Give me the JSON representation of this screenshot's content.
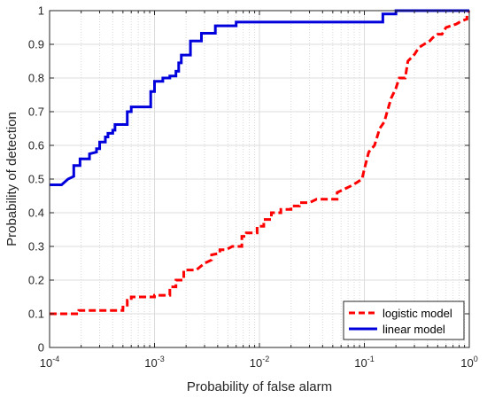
{
  "chart_data": {
    "type": "line",
    "xlabel": "Probability of false alarm",
    "ylabel": "Probability of detection",
    "xscale": "log",
    "xlim": [
      0.0001,
      1
    ],
    "ylim": [
      0,
      1
    ],
    "grid": "on",
    "legend_position": "bottom-right",
    "x_ticks": [
      {
        "base": "10",
        "exp": "-4",
        "value": 0.0001
      },
      {
        "base": "10",
        "exp": "-3",
        "value": 0.001
      },
      {
        "base": "10",
        "exp": "-2",
        "value": 0.01
      },
      {
        "base": "10",
        "exp": "-1",
        "value": 0.1
      },
      {
        "base": "10",
        "exp": "0",
        "value": 1
      }
    ],
    "y_ticks": [
      "0",
      "0.1",
      "0.2",
      "0.3",
      "0.4",
      "0.5",
      "0.6",
      "0.7",
      "0.8",
      "0.9",
      "1"
    ],
    "series": [
      {
        "name": "logistic model",
        "color": "#ff0000",
        "style": "dashed",
        "points": [
          [
            0.0001,
            0.1
          ],
          [
            0.00019,
            0.1
          ],
          [
            0.00019,
            0.11
          ],
          [
            0.0005,
            0.11
          ],
          [
            0.0005,
            0.12
          ],
          [
            0.00055,
            0.12
          ],
          [
            0.00055,
            0.14
          ],
          [
            0.0006,
            0.14
          ],
          [
            0.0006,
            0.15
          ],
          [
            0.001,
            0.15
          ],
          [
            0.001,
            0.155
          ],
          [
            0.0014,
            0.155
          ],
          [
            0.0014,
            0.18
          ],
          [
            0.0016,
            0.18
          ],
          [
            0.0016,
            0.2
          ],
          [
            0.0019,
            0.2
          ],
          [
            0.0019,
            0.23
          ],
          [
            0.0025,
            0.23
          ],
          [
            0.003,
            0.25
          ],
          [
            0.0035,
            0.26
          ],
          [
            0.0035,
            0.275
          ],
          [
            0.0042,
            0.28
          ],
          [
            0.0042,
            0.29
          ],
          [
            0.0048,
            0.29
          ],
          [
            0.0055,
            0.3
          ],
          [
            0.0068,
            0.3
          ],
          [
            0.0068,
            0.33
          ],
          [
            0.0075,
            0.33
          ],
          [
            0.0075,
            0.34
          ],
          [
            0.0095,
            0.34
          ],
          [
            0.0095,
            0.36
          ],
          [
            0.011,
            0.36
          ],
          [
            0.011,
            0.38
          ],
          [
            0.013,
            0.38
          ],
          [
            0.013,
            0.4
          ],
          [
            0.016,
            0.4
          ],
          [
            0.016,
            0.41
          ],
          [
            0.02,
            0.41
          ],
          [
            0.02,
            0.42
          ],
          [
            0.024,
            0.42
          ],
          [
            0.024,
            0.43
          ],
          [
            0.03,
            0.43
          ],
          [
            0.035,
            0.44
          ],
          [
            0.055,
            0.44
          ],
          [
            0.055,
            0.46
          ],
          [
            0.075,
            0.48
          ],
          [
            0.085,
            0.49
          ],
          [
            0.095,
            0.5
          ],
          [
            0.1,
            0.53
          ],
          [
            0.11,
            0.58
          ],
          [
            0.125,
            0.6
          ],
          [
            0.14,
            0.65
          ],
          [
            0.155,
            0.67
          ],
          [
            0.165,
            0.7
          ],
          [
            0.18,
            0.74
          ],
          [
            0.2,
            0.77
          ],
          [
            0.215,
            0.8
          ],
          [
            0.245,
            0.8
          ],
          [
            0.26,
            0.85
          ],
          [
            0.3,
            0.87
          ],
          [
            0.33,
            0.89
          ],
          [
            0.37,
            0.9
          ],
          [
            0.42,
            0.91
          ],
          [
            0.45,
            0.92
          ],
          [
            0.5,
            0.93
          ],
          [
            0.55,
            0.93
          ],
          [
            0.6,
            0.95
          ],
          [
            0.75,
            0.96
          ],
          [
            0.85,
            0.97
          ],
          [
            0.95,
            0.975
          ],
          [
            0.95,
            0.99
          ],
          [
            1,
            1
          ]
        ]
      },
      {
        "name": "linear model",
        "color": "#0000dd",
        "style": "solid",
        "points": [
          [
            0.0001,
            0.483
          ],
          [
            0.00013,
            0.483
          ],
          [
            0.00015,
            0.5
          ],
          [
            0.00017,
            0.508
          ],
          [
            0.00017,
            0.54
          ],
          [
            0.000195,
            0.54
          ],
          [
            0.000195,
            0.56
          ],
          [
            0.00024,
            0.56
          ],
          [
            0.00024,
            0.575
          ],
          [
            0.00028,
            0.58
          ],
          [
            0.00028,
            0.59
          ],
          [
            0.0003,
            0.59
          ],
          [
            0.0003,
            0.61
          ],
          [
            0.00034,
            0.61
          ],
          [
            0.00034,
            0.625
          ],
          [
            0.00036,
            0.625
          ],
          [
            0.00036,
            0.636
          ],
          [
            0.0004,
            0.636
          ],
          [
            0.0004,
            0.645
          ],
          [
            0.00042,
            0.645
          ],
          [
            0.00042,
            0.662
          ],
          [
            0.00055,
            0.662
          ],
          [
            0.00055,
            0.7
          ],
          [
            0.0006,
            0.7
          ],
          [
            0.0006,
            0.714
          ],
          [
            0.00092,
            0.714
          ],
          [
            0.00092,
            0.76
          ],
          [
            0.001,
            0.76
          ],
          [
            0.001,
            0.79
          ],
          [
            0.0012,
            0.79
          ],
          [
            0.0012,
            0.8
          ],
          [
            0.0014,
            0.8
          ],
          [
            0.0014,
            0.806
          ],
          [
            0.0016,
            0.806
          ],
          [
            0.0016,
            0.82
          ],
          [
            0.0017,
            0.82
          ],
          [
            0.0017,
            0.845
          ],
          [
            0.0018,
            0.845
          ],
          [
            0.0018,
            0.868
          ],
          [
            0.0022,
            0.868
          ],
          [
            0.0022,
            0.91
          ],
          [
            0.0028,
            0.91
          ],
          [
            0.0028,
            0.933
          ],
          [
            0.0038,
            0.933
          ],
          [
            0.0038,
            0.955
          ],
          [
            0.006,
            0.955
          ],
          [
            0.006,
            0.966
          ],
          [
            0.15,
            0.966
          ],
          [
            0.15,
            0.99
          ],
          [
            0.2,
            0.99
          ],
          [
            0.2,
            1
          ],
          [
            1,
            1
          ]
        ]
      }
    ]
  }
}
